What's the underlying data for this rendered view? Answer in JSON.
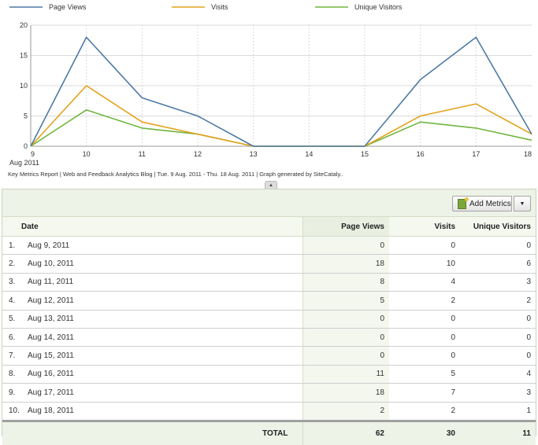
{
  "legend": [
    "Page Views",
    "Visits",
    "Unique Visitors"
  ],
  "colors": {
    "page_views": "#4e7aa4",
    "visits": "#e3a31c",
    "unique_visitors": "#71b53e",
    "grid": "#dadada"
  },
  "chart_data": {
    "type": "line",
    "x": [
      "9",
      "10",
      "11",
      "12",
      "13",
      "14",
      "15",
      "16",
      "17",
      "18"
    ],
    "x_sublabel": "Aug 2011",
    "ylim": [
      0,
      20
    ],
    "yticks": [
      0,
      5,
      10,
      15,
      20
    ],
    "grid": true,
    "legend_position": "top",
    "series": [
      {
        "name": "Page Views",
        "color": "#4e7aa4",
        "values": [
          0,
          18,
          8,
          5,
          0,
          0,
          0,
          11,
          18,
          2
        ]
      },
      {
        "name": "Visits",
        "color": "#e3a31c",
        "values": [
          0,
          10,
          4,
          2,
          0,
          0,
          0,
          5,
          7,
          2
        ]
      },
      {
        "name": "Unique Visitors",
        "color": "#71b53e",
        "values": [
          0,
          6,
          3,
          2,
          0,
          0,
          0,
          4,
          3,
          1
        ]
      }
    ]
  },
  "caption": "Key Metrics Report | Web and Feedback Analytics Blog | Tue.  9 Aug. 2011 - Thu. 18 Aug. 2011 | Graph generated by SiteCataly..",
  "collapse_glyph": "▲",
  "toolbar": {
    "add_metrics_label": "Add Metrics",
    "dropdown_glyph": "▼",
    "add_metrics_icon": "add-metrics-icon"
  },
  "table": {
    "headers": {
      "date": "Date",
      "page_views": "Page Views",
      "visits": "Visits",
      "unique_visitors": "Unique Visitors"
    },
    "rows": [
      {
        "index": "1.",
        "date": "Aug 9, 2011",
        "page_views": "0",
        "visits": "0",
        "unique_visitors": "0"
      },
      {
        "index": "2.",
        "date": "Aug 10, 2011",
        "page_views": "18",
        "visits": "10",
        "unique_visitors": "6"
      },
      {
        "index": "3.",
        "date": "Aug 11, 2011",
        "page_views": "8",
        "visits": "4",
        "unique_visitors": "3"
      },
      {
        "index": "4.",
        "date": "Aug 12, 2011",
        "page_views": "5",
        "visits": "2",
        "unique_visitors": "2"
      },
      {
        "index": "5.",
        "date": "Aug 13, 2011",
        "page_views": "0",
        "visits": "0",
        "unique_visitors": "0"
      },
      {
        "index": "6.",
        "date": "Aug 14, 2011",
        "page_views": "0",
        "visits": "0",
        "unique_visitors": "0"
      },
      {
        "index": "7.",
        "date": "Aug 15, 2011",
        "page_views": "0",
        "visits": "0",
        "unique_visitors": "0"
      },
      {
        "index": "8.",
        "date": "Aug 16, 2011",
        "page_views": "11",
        "visits": "5",
        "unique_visitors": "4"
      },
      {
        "index": "9.",
        "date": "Aug 17, 2011",
        "page_views": "18",
        "visits": "7",
        "unique_visitors": "3"
      },
      {
        "index": "10.",
        "date": "Aug 18, 2011",
        "page_views": "2",
        "visits": "2",
        "unique_visitors": "1"
      }
    ],
    "total": {
      "label": "TOTAL",
      "page_views": "62",
      "visits": "30",
      "unique_visitors": "11"
    }
  }
}
